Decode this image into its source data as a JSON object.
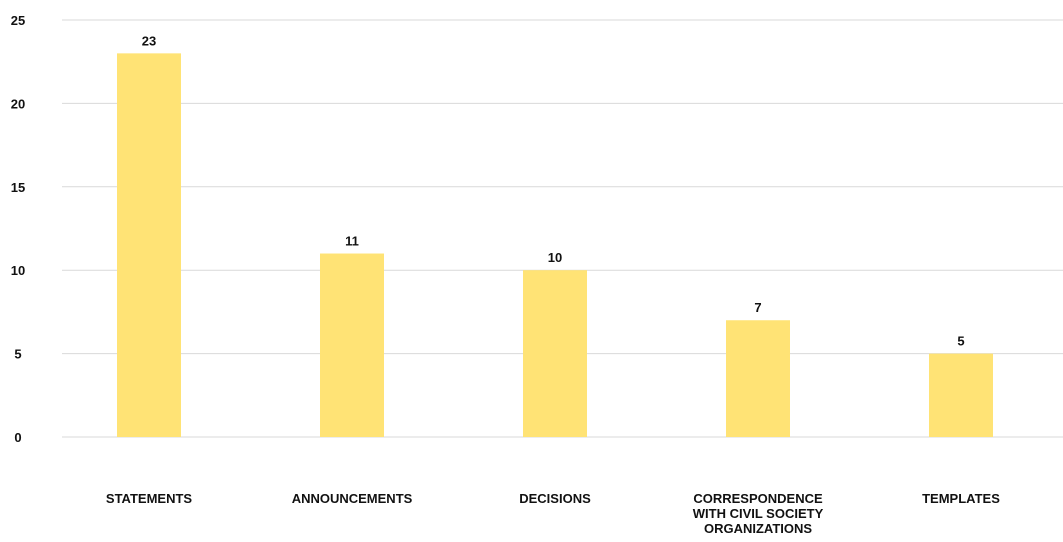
{
  "chart_data": {
    "type": "bar",
    "title": "",
    "xlabel": "",
    "ylabel": "",
    "categories": [
      [
        "STATEMENTS"
      ],
      [
        "ANNOUNCEMENTS"
      ],
      [
        "DECISIONS"
      ],
      [
        "CORRESPONDENCE",
        "WITH CIVIL SOCIETY",
        "ORGANIZATIONS"
      ],
      [
        "TEMPLATES"
      ]
    ],
    "values": [
      23,
      11,
      10,
      7,
      5
    ],
    "data_labels": [
      "23",
      "11",
      "10",
      "7",
      "5"
    ],
    "ylim": [
      0,
      25
    ],
    "yticks": [
      0,
      5,
      10,
      15,
      20,
      25
    ],
    "ytick_labels": [
      "0",
      "5",
      "10",
      "15",
      "20",
      "25"
    ],
    "grid": true,
    "legend": "none",
    "colors": {
      "bar": "#FFE375",
      "grid": "#d9d9d9",
      "text": "#111111"
    }
  }
}
